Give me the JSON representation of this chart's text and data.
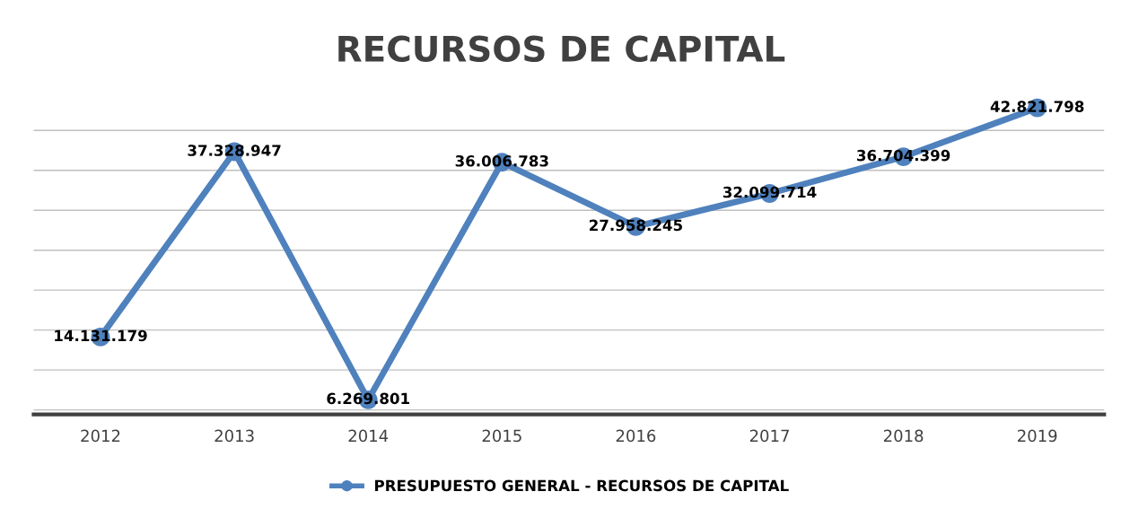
{
  "chart_data": {
    "type": "line",
    "title": "RECURSOS DE CAPITAL",
    "categories": [
      "2012",
      "2013",
      "2014",
      "2015",
      "2016",
      "2017",
      "2018",
      "2019"
    ],
    "series": [
      {
        "name": "PRESUPUESTO GENERAL - RECURSOS DE CAPITAL",
        "color": "#4f81bd",
        "values": [
          14131179,
          37328947,
          6269801,
          36006783,
          27958245,
          32099714,
          36704399,
          42821798
        ],
        "value_labels": [
          "14.131.179",
          "37.328.947",
          "6.269.801",
          "36.006.783",
          "27.958.245",
          "32.099.714",
          "36.704.399",
          "42.821.798"
        ]
      }
    ],
    "tick_labels": "x",
    "grid": "y",
    "legend": "bottom",
    "marker": "circle",
    "line_style": "solid"
  }
}
